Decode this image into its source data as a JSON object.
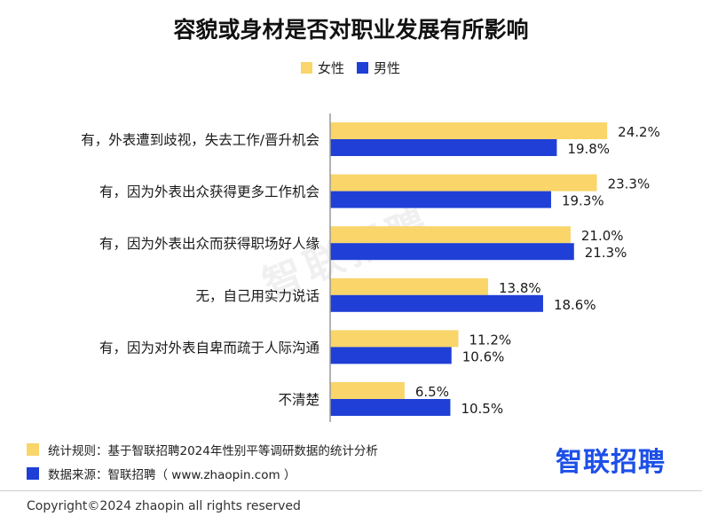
{
  "title": "容貌或身材是否对职业发展有所影响",
  "watermark": "智联招聘",
  "colors": {
    "female": "#f9d56a",
    "male": "#1f3fd6",
    "axis": "#999999"
  },
  "chart_data": {
    "type": "bar",
    "orientation": "horizontal",
    "categories": [
      "有，外表遭到歧视，失去工作/晋升机会",
      "有，因为外表出众获得更多工作机会",
      "有，因为外表出众而获得职场好人缘",
      "无，自己用实力说话",
      "有，因为对外表自卑而疏于人际沟通",
      "不清楚"
    ],
    "series": [
      {
        "name": "女性",
        "values": [
          24.2,
          23.3,
          21.0,
          13.8,
          11.2,
          6.5
        ],
        "labels": [
          "24.2%",
          "23.3%",
          "21.0%",
          "13.8%",
          "11.2%",
          "6.5%"
        ]
      },
      {
        "name": "男性",
        "values": [
          19.8,
          19.3,
          21.3,
          18.6,
          10.6,
          10.5
        ],
        "labels": [
          "19.8%",
          "19.3%",
          "21.3%",
          "18.6%",
          "10.6%",
          "10.5%"
        ]
      }
    ],
    "xlim": [
      0,
      30
    ],
    "grid": false,
    "legend": "top-center"
  },
  "footer": {
    "rule": "统计规则：基于智联招聘2024年性别平等调研数据的统计分析",
    "source": "数据来源：智联招聘（ www.zhaopin.com ）",
    "brand": "智联招聘",
    "copyright": "Copyright©2024 zhaopin all rights reserved"
  }
}
